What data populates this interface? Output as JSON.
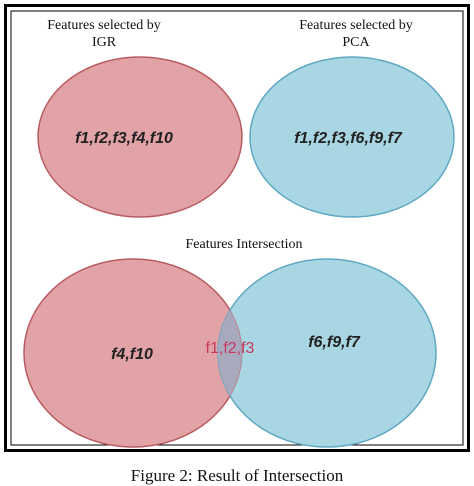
{
  "top": {
    "left_title": "Features selected by IGR",
    "left_title_lines": [
      "Features selected by",
      "IGR"
    ],
    "left_features": "f1,f2,f3,f4,f10",
    "right_title": "Features selected by PCA",
    "right_title_lines": [
      "Features selected by",
      "PCA"
    ],
    "right_features": "f1,f2,f3,f6,f9,f7"
  },
  "bottom": {
    "title": "Features Intersection",
    "left_only": "f4,f10",
    "intersection": "f1,f2,f3",
    "right_only": "f6,f9,f7"
  },
  "caption": "Figure 2: Result of Intersection",
  "colors": {
    "igr_fill": "#e2a3a6",
    "igr_stroke": "#b85c62",
    "pca_fill": "#a9d6e3",
    "pca_stroke": "#5fa8c2",
    "overlap_fill": "#a9a9bd",
    "intersection_text": "#c8375f",
    "frame": "#000000"
  }
}
